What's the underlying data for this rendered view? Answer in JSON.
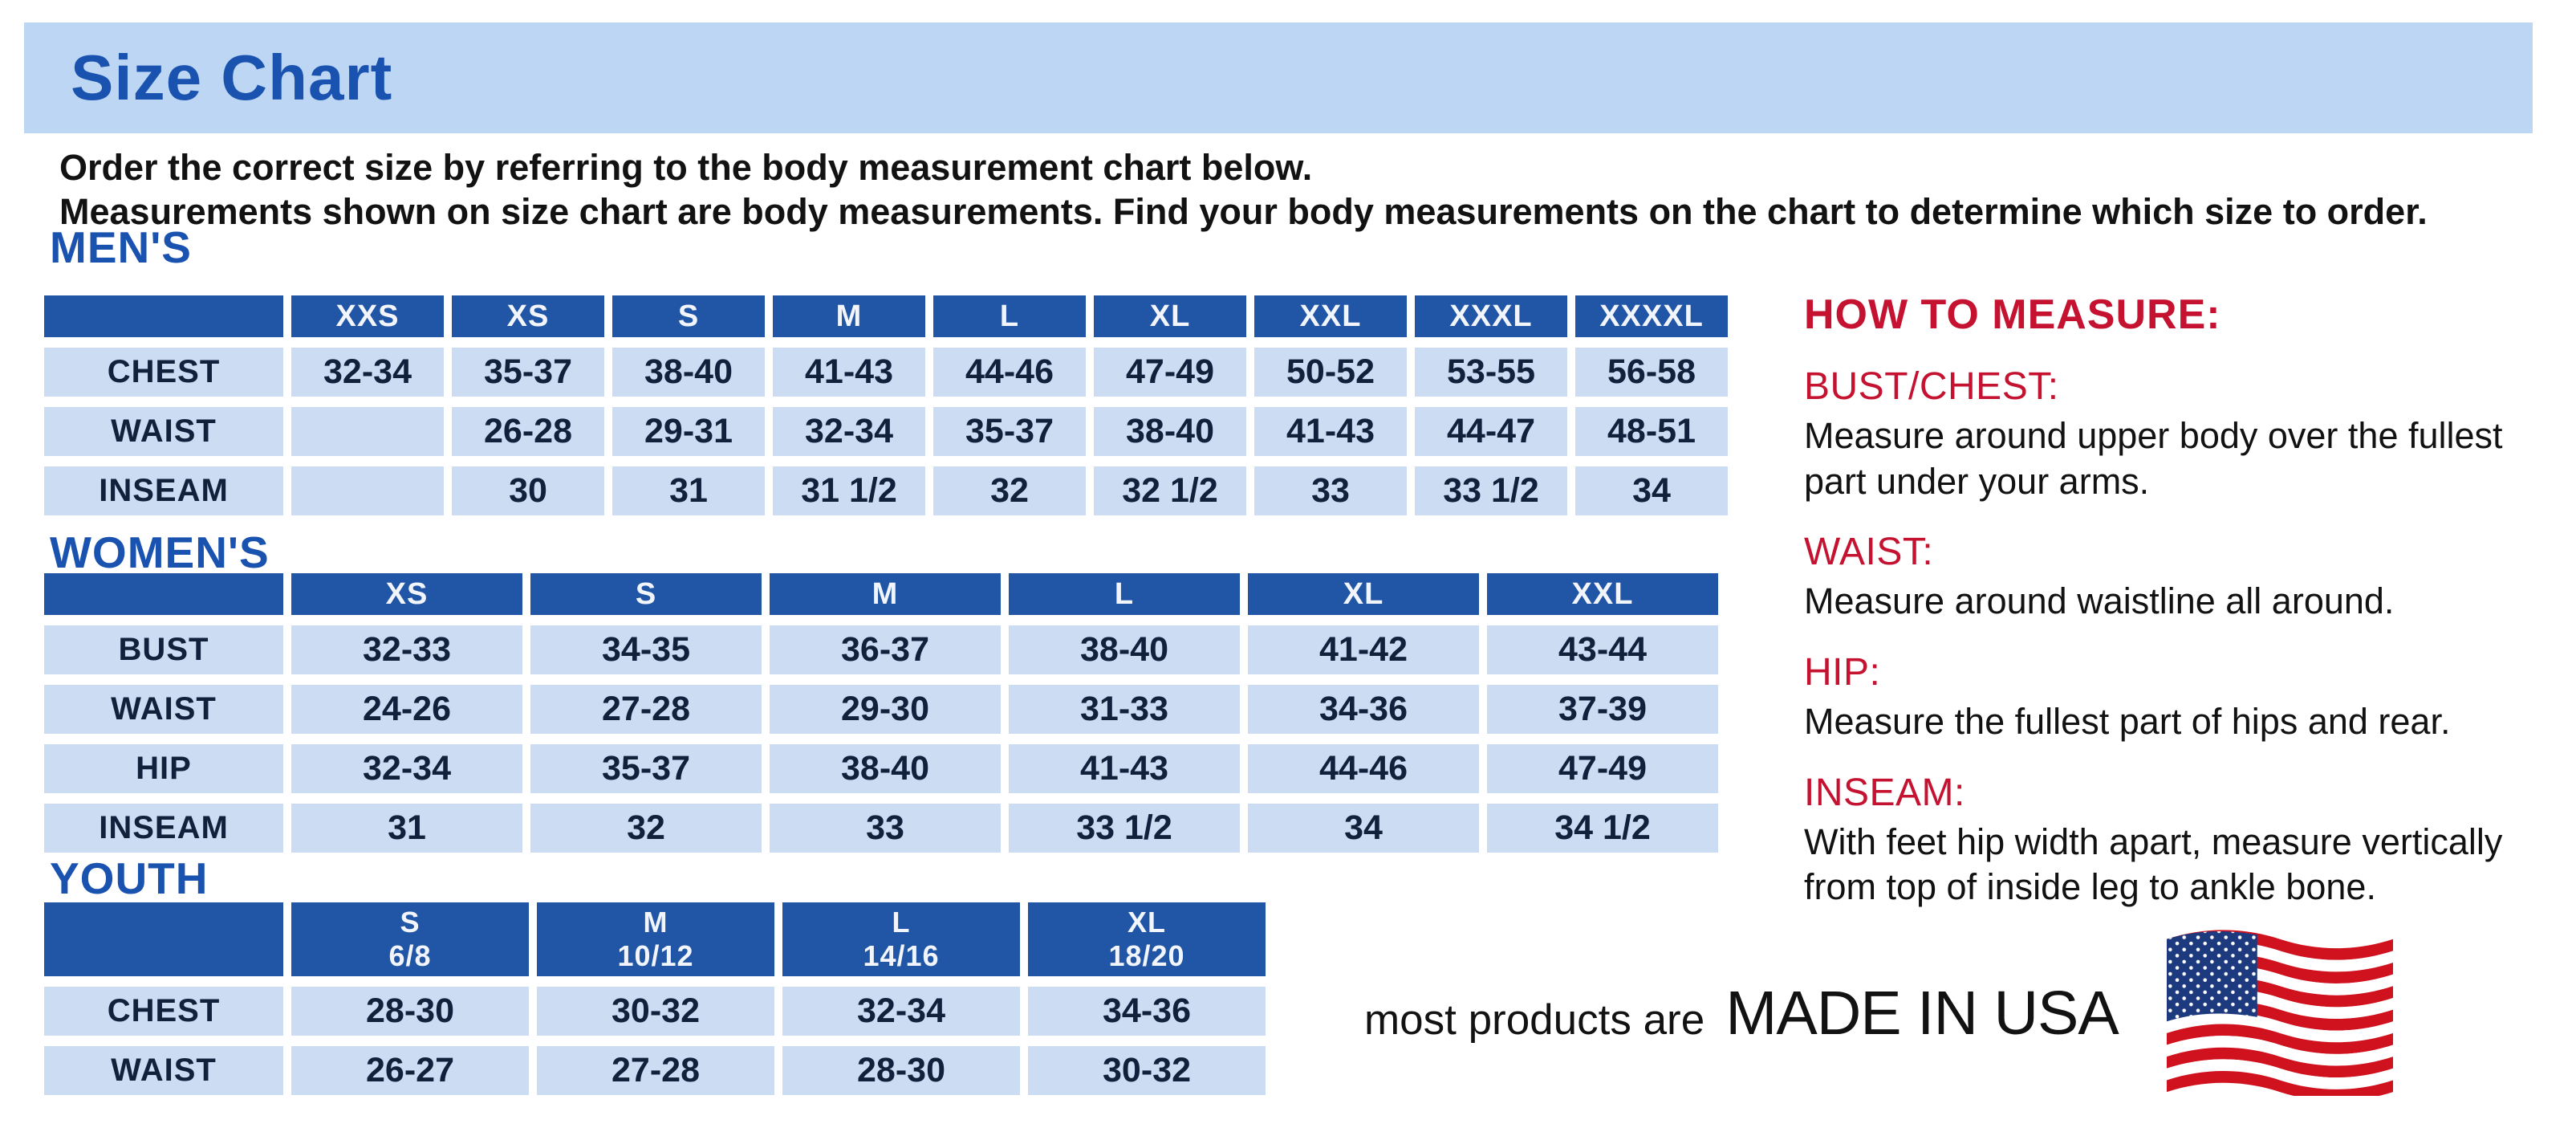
{
  "banner": {
    "title": "Size Chart"
  },
  "intro": {
    "line1": "Order the correct size by referring to the body measurement chart below.",
    "line2": "Measurements shown on size chart are body measurements.  Find your body measurements on the chart to determine which size to order."
  },
  "colors": {
    "banner_bg": "#bdd6f3",
    "title_blue": "#1a52b0",
    "table_header_blue": "#2156a6",
    "table_cell_bg": "#cbdcf3",
    "table_cell_text": "#13203c",
    "red_heading": "#c41230"
  },
  "tables": {
    "mens": {
      "heading": "MEN'S",
      "columns": [
        "XXS",
        "XS",
        "S",
        "M",
        "L",
        "XL",
        "XXL",
        "XXXL",
        "XXXXL"
      ],
      "rows": [
        {
          "label": "CHEST",
          "values": [
            "32-34",
            "35-37",
            "38-40",
            "41-43",
            "44-46",
            "47-49",
            "50-52",
            "53-55",
            "56-58"
          ]
        },
        {
          "label": "WAIST",
          "values": [
            "",
            "26-28",
            "29-31",
            "32-34",
            "35-37",
            "38-40",
            "41-43",
            "44-47",
            "48-51"
          ]
        },
        {
          "label": "INSEAM",
          "values": [
            "",
            "30",
            "31",
            "31 1/2",
            "32",
            "32 1/2",
            "33",
            "33 1/2",
            "34"
          ]
        }
      ]
    },
    "womens": {
      "heading": "WOMEN'S",
      "columns": [
        "XS",
        "S",
        "M",
        "L",
        "XL",
        "XXL"
      ],
      "rows": [
        {
          "label": "BUST",
          "values": [
            "32-33",
            "34-35",
            "36-37",
            "38-40",
            "41-42",
            "43-44"
          ]
        },
        {
          "label": "WAIST",
          "values": [
            "24-26",
            "27-28",
            "29-30",
            "31-33",
            "34-36",
            "37-39"
          ]
        },
        {
          "label": "HIP",
          "values": [
            "32-34",
            "35-37",
            "38-40",
            "41-43",
            "44-46",
            "47-49"
          ]
        },
        {
          "label": "INSEAM",
          "values": [
            "31",
            "32",
            "33",
            "33 1/2",
            "34",
            "34 1/2"
          ]
        }
      ]
    },
    "youth": {
      "heading": "YOUTH",
      "columns": [
        {
          "size": "S",
          "range": "6/8"
        },
        {
          "size": "M",
          "range": "10/12"
        },
        {
          "size": "L",
          "range": "14/16"
        },
        {
          "size": "XL",
          "range": "18/20"
        }
      ],
      "rows": [
        {
          "label": "CHEST",
          "values": [
            "28-30",
            "30-32",
            "32-34",
            "34-36"
          ]
        },
        {
          "label": "WAIST",
          "values": [
            "26-27",
            "27-28",
            "28-30",
            "30-32"
          ]
        }
      ]
    }
  },
  "how_to_measure": {
    "title": "HOW TO MEASURE:",
    "sections": [
      {
        "heading": "BUST/CHEST:",
        "text": "Measure around upper body over the fullest part under your arms."
      },
      {
        "heading": "WAIST:",
        "text": "Measure around waistline all around."
      },
      {
        "heading": "HIP:",
        "text": "Measure the fullest part of hips and rear."
      },
      {
        "heading": "INSEAM:",
        "text": "With feet hip width apart, measure vertically from top of inside leg to ankle bone."
      }
    ]
  },
  "footer": {
    "prefix": "most products are",
    "main": "MADE IN USA",
    "flag_icon": "usa-flag"
  }
}
